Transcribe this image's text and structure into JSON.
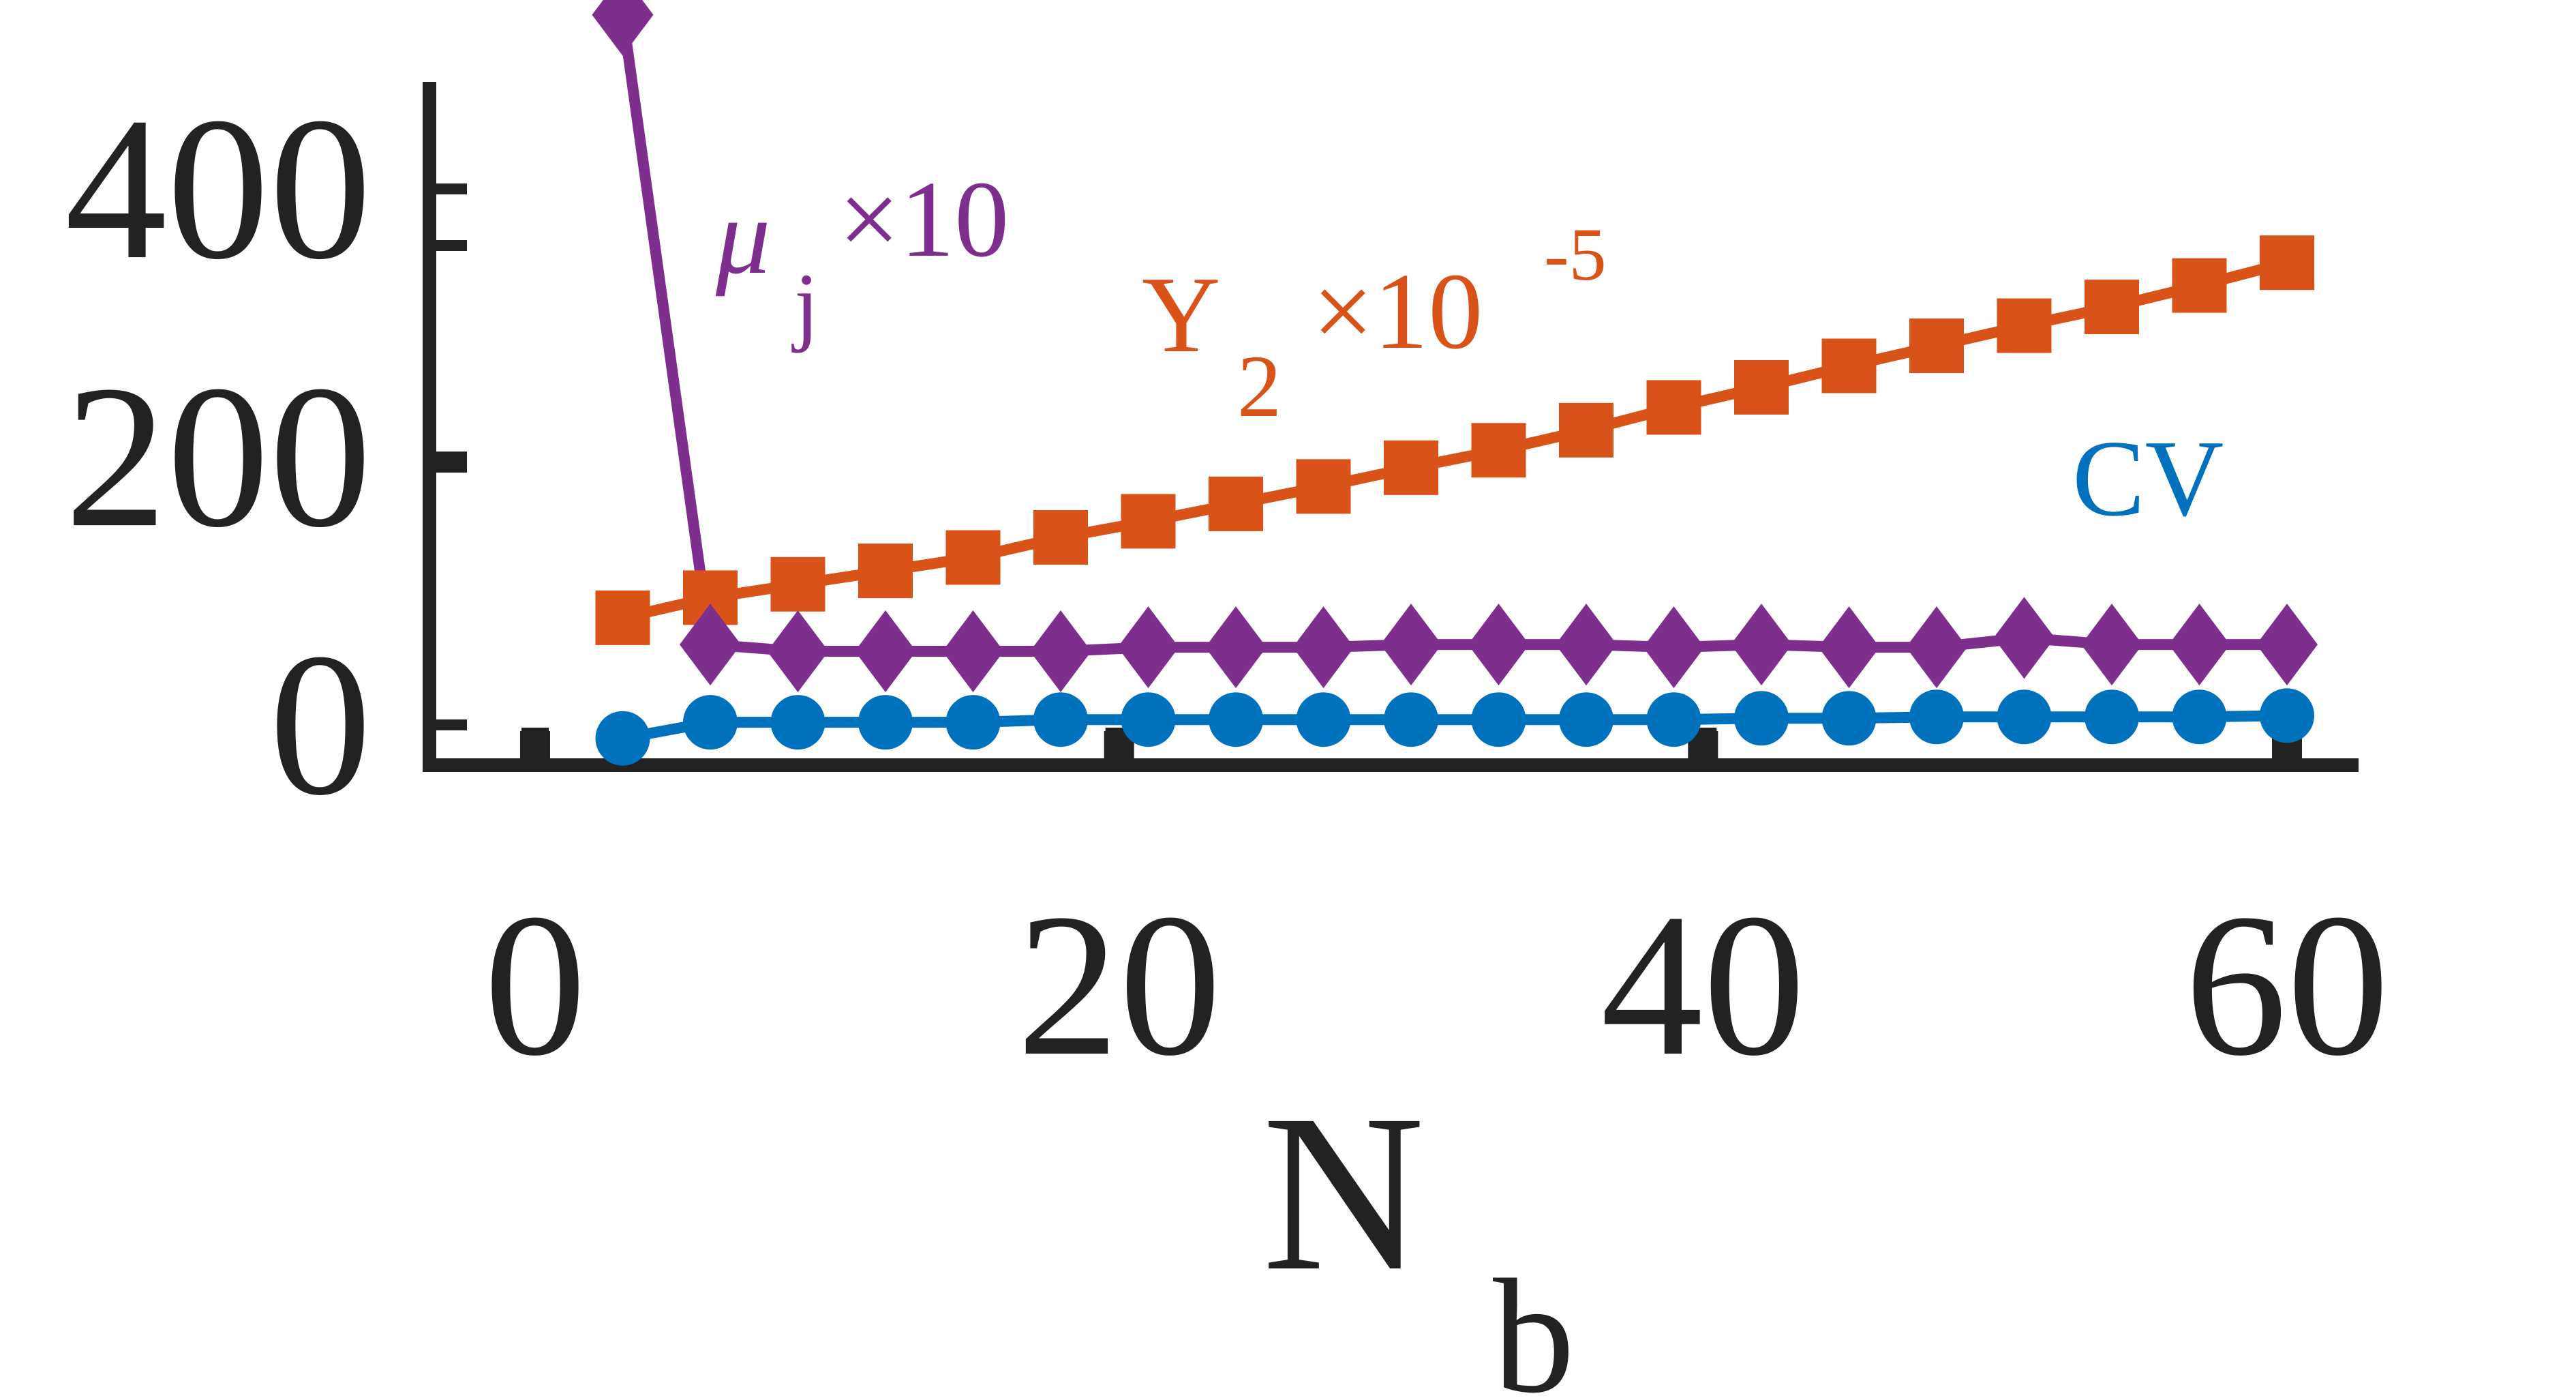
{
  "chart_data": {
    "type": "line",
    "xlabel": "N",
    "xlabel_subscript": "b",
    "ylabel": "",
    "xlim": [
      0,
      60
    ],
    "ylim": [
      -30,
      480
    ],
    "xticks": [
      0,
      20,
      40,
      60
    ],
    "yticks": [
      0,
      200,
      400
    ],
    "x": [
      3,
      6,
      9,
      12,
      15,
      18,
      21,
      24,
      27,
      30,
      33,
      36,
      39,
      42,
      45,
      48,
      51,
      54,
      57,
      60
    ],
    "series": [
      {
        "name": "CV",
        "color": "#0072BD",
        "marker": "circle",
        "values": [
          -10,
          2,
          2,
          2,
          2,
          4,
          4,
          4,
          4,
          4,
          4,
          4,
          4,
          5,
          5,
          6,
          6,
          6,
          6,
          7
        ]
      },
      {
        "name": "μ_j × 10",
        "color": "#7E2F8E",
        "marker": "diamond",
        "values": [
          530,
          60,
          55,
          55,
          55,
          55,
          58,
          58,
          58,
          60,
          60,
          60,
          58,
          60,
          58,
          58,
          65,
          60,
          60,
          60
        ]
      },
      {
        "name": "Y_2 × 10^-5",
        "color": "#D95319",
        "marker": "square",
        "values": [
          80,
          95,
          105,
          115,
          125,
          140,
          152,
          165,
          178,
          192,
          205,
          220,
          237,
          252,
          268,
          283,
          298,
          312,
          328,
          345
        ]
      }
    ],
    "annotations": [
      {
        "series": "μ_j × 10",
        "main": "μ",
        "sub": "j",
        "rest": "×10",
        "color": "#7E2F8E"
      },
      {
        "series": "Y_2 × 10^-5",
        "main": "Y",
        "sub": "2",
        "rest": "×10",
        "sup": "-5",
        "color": "#D95319"
      },
      {
        "series": "CV",
        "main": "CV",
        "color": "#0072BD"
      }
    ],
    "grid": false,
    "legend": "none"
  }
}
